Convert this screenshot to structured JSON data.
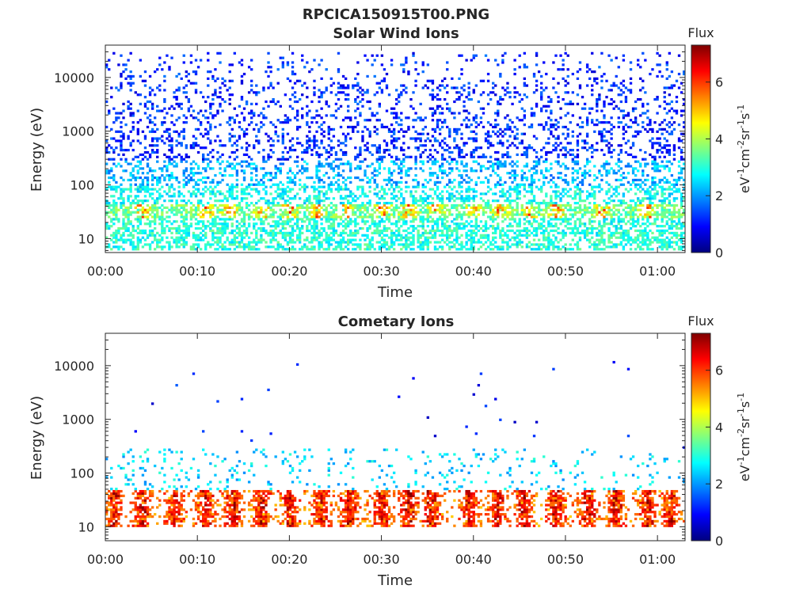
{
  "figure_title": "RPCICA150915T00.PNG",
  "colorbar": {
    "title": "Flux",
    "ticks": [
      "0",
      "2",
      "4",
      "6"
    ],
    "range": [
      0,
      7.3
    ],
    "colormap": "jet"
  },
  "chart_data": [
    {
      "type": "heatmap",
      "title": "Solar Wind Ions",
      "xlabel": "Time",
      "ylabel": "Energy (eV)",
      "yscale": "log",
      "ylim": [
        5.5,
        40000
      ],
      "xlim_minutes": [
        0,
        63
      ],
      "x_tick_labels": [
        "00:00",
        "00:10",
        "00:20",
        "00:30",
        "00:40",
        "00:50",
        "01:00"
      ],
      "y_tick_labels": [
        "10",
        "100",
        "1000",
        "10000"
      ],
      "colorbar_label": "eV-1cm-2sr-1s-1",
      "zlim": [
        0,
        7.3
      ],
      "bands": [
        {
          "energy_range_eV": [
            300,
            30000
          ],
          "typical_flux": 1.2,
          "coverage": "sparse, random"
        },
        {
          "energy_range_eV": [
            100,
            300
          ],
          "typical_flux": 2.2,
          "coverage": "sparse"
        },
        {
          "energy_range_eV": [
            45,
            100
          ],
          "typical_flux": 2.8,
          "coverage": "scattered"
        },
        {
          "energy_range_eV": [
            25,
            45
          ],
          "typical_flux": 3.5,
          "coverage": "dense, peaks to 6.5"
        },
        {
          "energy_range_eV": [
            6,
            25
          ],
          "typical_flux": 3.0,
          "coverage": "moderate"
        }
      ],
      "peak_times_minutes": [
        4,
        11,
        13.5,
        17,
        20,
        23,
        26,
        30,
        33,
        36,
        40,
        43,
        46,
        49,
        54,
        59
      ]
    },
    {
      "type": "heatmap",
      "title": "Cometary Ions",
      "xlabel": "Time",
      "ylabel": "Energy (eV)",
      "yscale": "log",
      "ylim": [
        5.5,
        40000
      ],
      "xlim_minutes": [
        0,
        63
      ],
      "x_tick_labels": [
        "00:00",
        "00:10",
        "00:20",
        "00:30",
        "00:40",
        "00:50",
        "01:00"
      ],
      "y_tick_labels": [
        "10",
        "100",
        "1000",
        "10000"
      ],
      "colorbar_label": "eV-1cm-2sr-1s-1",
      "zlim": [
        0,
        7.3
      ],
      "bands": [
        {
          "energy_range_eV": [
            300,
            12000
          ],
          "typical_flux": 1.0,
          "coverage": "isolated points"
        },
        {
          "energy_range_eV": [
            50,
            300
          ],
          "typical_flux": 2.5,
          "coverage": "sparse"
        },
        {
          "energy_range_eV": [
            10,
            50
          ],
          "typical_flux": 5.5,
          "coverage": "dense bursts, peaks to 7"
        }
      ],
      "burst_times_minutes": [
        1,
        4,
        7.5,
        11,
        14,
        17,
        20,
        23.5,
        26.5,
        30,
        33,
        35.5,
        39.5,
        42.5,
        45.5,
        49,
        52.5,
        55.5,
        59,
        61.5
      ]
    }
  ]
}
